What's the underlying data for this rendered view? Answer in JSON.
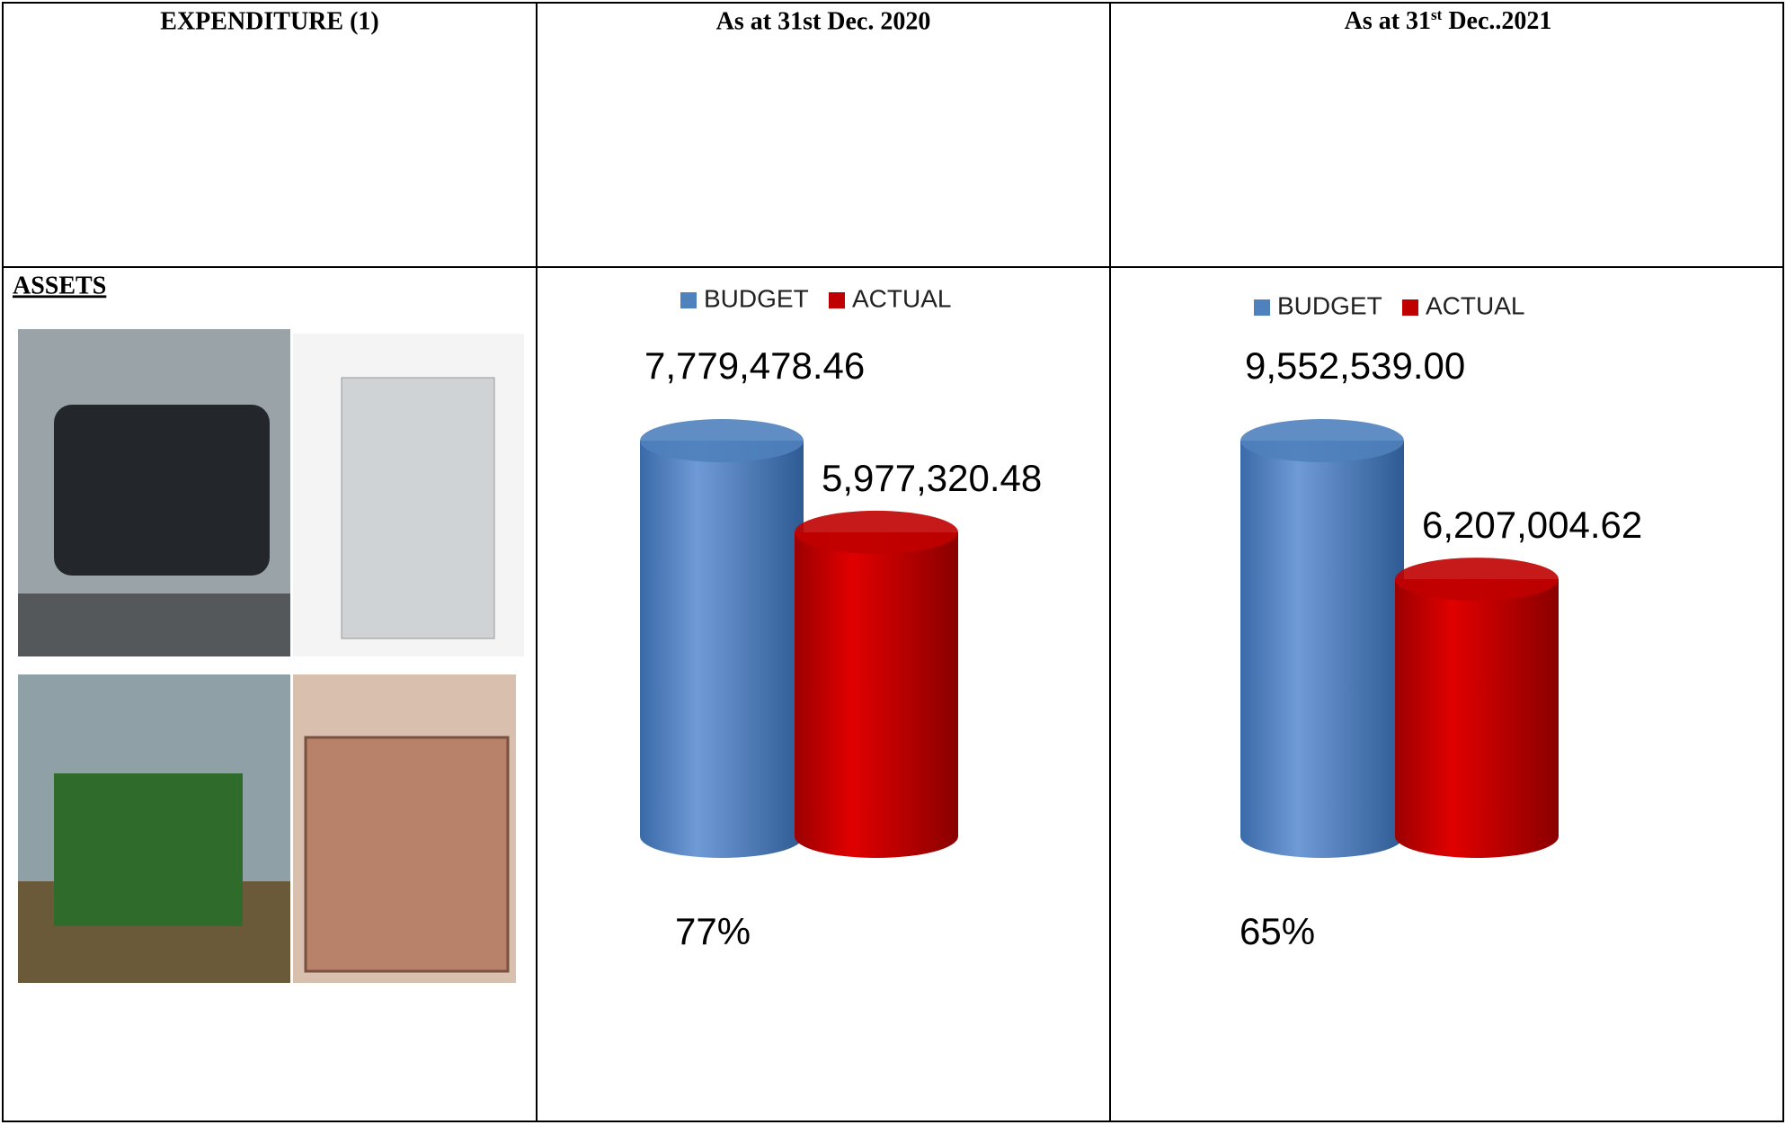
{
  "header": {
    "col1": "EXPENDITURE (1)",
    "col2": "As at 31st Dec. 2020",
    "col3": {
      "prefix": "As at 31",
      "sup": "st",
      "suffix": " Dec..2021"
    }
  },
  "row": {
    "label": "ASSETS"
  },
  "chart_data": [
    {
      "type": "bar",
      "series": [
        {
          "name": "BUDGET",
          "color": "#4f81bd",
          "values": [
            7779478.46
          ],
          "value_labels": [
            "7,779,478.46"
          ]
        },
        {
          "name": "ACTUAL",
          "color": "#c00000",
          "values": [
            5977320.48
          ],
          "value_labels": [
            "5,977,320.48"
          ]
        }
      ],
      "annotation": "77%"
    },
    {
      "type": "bar",
      "series": [
        {
          "name": "BUDGET",
          "color": "#4f81bd",
          "values": [
            9552539.0
          ],
          "value_labels": [
            "9,552,539.00"
          ]
        },
        {
          "name": "ACTUAL",
          "color": "#c00000",
          "values": [
            6207004.62
          ],
          "value_labels": [
            "6,207,004.62"
          ]
        }
      ],
      "annotation": "65%"
    }
  ]
}
